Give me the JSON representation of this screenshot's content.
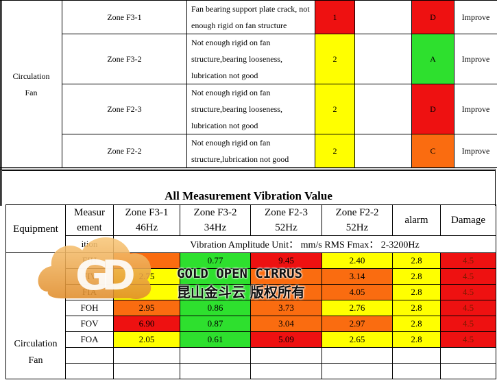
{
  "defects": {
    "equipment": [
      "Circulation",
      "Fan"
    ],
    "rows": [
      {
        "zone": "Zone F3-1",
        "desc": [
          "Fan bearing support plate crack, not",
          "enough rigid on fan structure"
        ],
        "level": "1",
        "level_color": "#ee1111",
        "grade": "D",
        "grade_color": "#ee1111",
        "action": "Improve"
      },
      {
        "zone": "Zone F3-2",
        "desc": [
          "Not enough rigid on fan",
          "structure,bearing looseness,",
          "lubrication not good"
        ],
        "level": "2",
        "level_color": "#ffff00",
        "grade": "A",
        "grade_color": "#2ee02e",
        "action": "Improve"
      },
      {
        "zone": "Zone F2-3",
        "desc": [
          "Not enough rigid on fan",
          "structure,bearing looseness,",
          "lubrication not good"
        ],
        "level": "2",
        "level_color": "#ffff00",
        "grade": "D",
        "grade_color": "#ee1111",
        "action": "Improve"
      },
      {
        "zone": "Zone F2-2",
        "desc": [
          "Not enough rigid on fan",
          "structure,lubrication not good"
        ],
        "level": "2",
        "level_color": "#ffff00",
        "grade": "C",
        "grade_color": "#fa6c10",
        "action": "Improve"
      }
    ]
  },
  "vibration": {
    "title": "All Measurement Vibration Value",
    "headers": {
      "equipment": "Equipment",
      "measurement": "Measur\nement",
      "zones": [
        {
          "name": "Zone F3-1",
          "freq": "46Hz"
        },
        {
          "name": "Zone F3-2",
          "freq": "34Hz"
        },
        {
          "name": "Zone F2-3",
          "freq": "52Hz"
        },
        {
          "name": "Zone F2-2",
          "freq": "52Hz"
        }
      ],
      "alarm": "alarm",
      "damage": "Damage",
      "position_fragment": "ition",
      "unit_line": "Vibration Amplitude Unit： mm/s RMS    Fmax： 2-3200Hz"
    },
    "equipment": [
      "Circulation",
      "Fan"
    ],
    "rows": [
      {
        "point": "FIH",
        "vals": [
          "",
          "0.77",
          "9.45",
          "2.40"
        ],
        "colors": [
          "#fa6c10",
          "#2ee02e",
          "#ee1111",
          "#ffff00"
        ],
        "alarm": "2.8",
        "damage": "4.5"
      },
      {
        "point": "FIV",
        "vals": [
          "2.75",
          "",
          "",
          "3.14"
        ],
        "colors": [
          "#ffff00",
          "#2ee02e",
          "#fa6c10",
          "#fa6c10"
        ],
        "alarm": "2.8",
        "damage": "4.5"
      },
      {
        "point": "FIA",
        "vals": [
          "",
          "",
          "",
          "4.05"
        ],
        "colors": [
          "#ffff00",
          "#2ee02e",
          "#fa6c10",
          "#fa6c10"
        ],
        "alarm": "2.8",
        "damage": "4.5"
      },
      {
        "point": "FOH",
        "vals": [
          "2.95",
          "0.86",
          "3.73",
          "2.76"
        ],
        "colors": [
          "#fa6c10",
          "#2ee02e",
          "#fa6c10",
          "#ffff00"
        ],
        "alarm": "2.8",
        "damage": "4.5"
      },
      {
        "point": "FOV",
        "vals": [
          "6.90",
          "0.87",
          "3.04",
          "2.97"
        ],
        "colors": [
          "#ee1111",
          "#2ee02e",
          "#fa6c10",
          "#fa6c10"
        ],
        "alarm": "2.8",
        "damage": "4.5"
      },
      {
        "point": "FOA",
        "vals": [
          "2.05",
          "0.61",
          "5.09",
          "2.65"
        ],
        "colors": [
          "#ffff00",
          "#2ee02e",
          "#ee1111",
          "#ffff00"
        ],
        "alarm": "2.8",
        "damage": "4.5"
      }
    ],
    "alarm_color": "#ffff00",
    "damage_color": "#ee1111",
    "vals_partial": [
      "1.90"
    ]
  },
  "watermark": {
    "line1": "GOLD OPEN CIRRUS",
    "line2": "昆山金斗云 版权所有",
    "logo": "GD"
  }
}
